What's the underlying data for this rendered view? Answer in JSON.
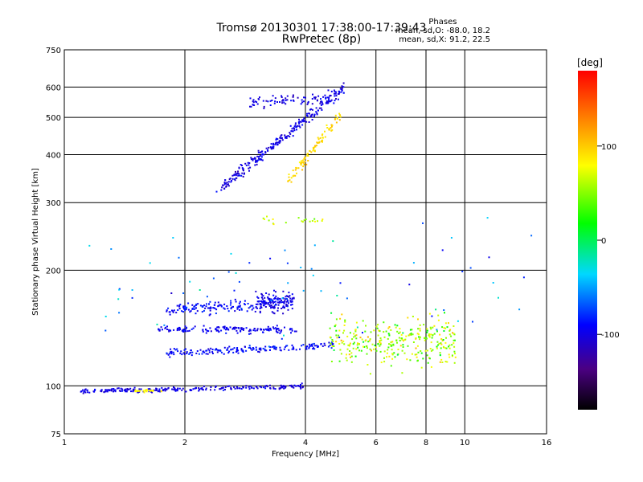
{
  "header": {
    "title_line1": "Tromsø 20130301 17:38:00-17:39:43",
    "title_line2": "RwPretec (8p)"
  },
  "phases_box": {
    "heading": "Phases",
    "line1": "mean, sd,O: -88.0, 18.2",
    "line2": "mean, sd,X: 91.2, 22.5"
  },
  "colorbar": {
    "label": "[deg]",
    "ticks": [
      "100",
      "0",
      "-100"
    ],
    "tick_values": [
      100,
      0,
      -100
    ],
    "range": [
      -180,
      180
    ]
  },
  "chart_data": {
    "type": "scatter",
    "title": "Tromsø 20130301 17:38:00-17:39:43",
    "subtitle": "RwPretec (8p)",
    "xlabel": "Frequency [MHz]",
    "ylabel": "Stationary phase Virtual Height [km]",
    "xscale": "log",
    "yscale": "log",
    "xlim": [
      1,
      16
    ],
    "ylim": [
      75,
      750
    ],
    "x_ticks": [
      1,
      2,
      4,
      6,
      8,
      10,
      16
    ],
    "x_tick_labels": [
      "1",
      "2",
      "4",
      "6",
      "8",
      "10",
      "16"
    ],
    "y_ticks": [
      75,
      100,
      200,
      300,
      400,
      500,
      600,
      750
    ],
    "y_tick_labels": [
      "75",
      "100",
      "200",
      "300",
      "400",
      "500",
      "600",
      "750"
    ],
    "color_variable": "phase [deg]",
    "clusters": [
      {
        "name": "F-region trace (O)",
        "x_range": [
          2.4,
          5.0
        ],
        "y_range": [
          320,
          600
        ],
        "phase_mean": -100
      },
      {
        "name": "F-region trace (X)",
        "x_range": [
          3.6,
          4.8
        ],
        "y_range": [
          350,
          500
        ],
        "phase_mean": 95
      },
      {
        "name": "Lower trace 100 km",
        "x_range": [
          1.1,
          4.0
        ],
        "y_range": [
          95,
          102
        ],
        "phase_mean": -100
      },
      {
        "name": "Layer 125 km",
        "x_range": [
          1.8,
          4.7
        ],
        "y_range": [
          118,
          130
        ],
        "phase_mean": -90
      },
      {
        "name": "Layer 140 km",
        "x_range": [
          1.7,
          3.8
        ],
        "y_range": [
          135,
          148
        ],
        "phase_mean": -95
      },
      {
        "name": "Layer 160 km",
        "x_range": [
          1.8,
          3.7
        ],
        "y_range": [
          150,
          175
        ],
        "phase_mean": -90
      },
      {
        "name": "Scattered 5-9 MHz",
        "x_range": [
          4.6,
          9.5
        ],
        "y_range": [
          90,
          270
        ],
        "phase_mean": 60
      }
    ]
  }
}
